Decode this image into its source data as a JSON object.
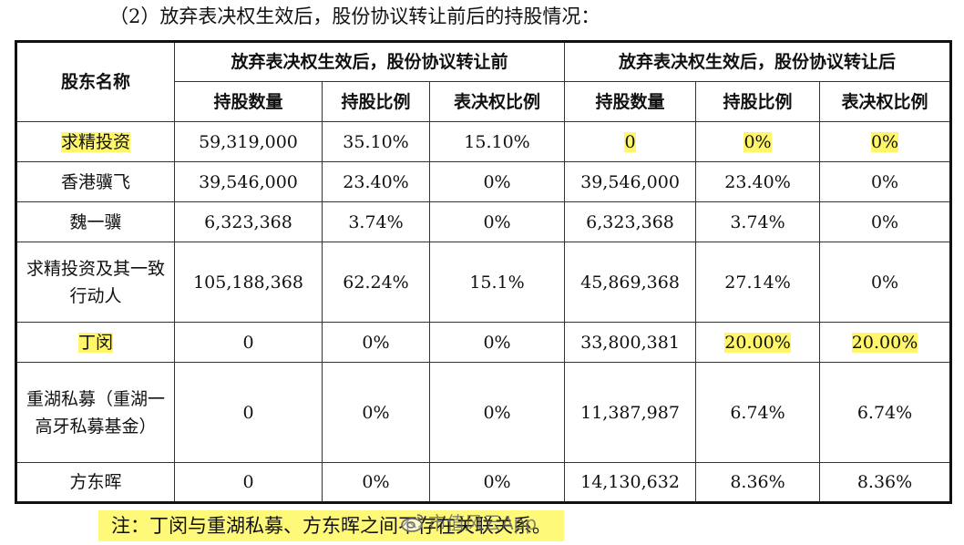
{
  "heading": "（2）放弃表决权生效后，股份协议转让前后的持股情况：",
  "table": {
    "col_name": "股东名称",
    "group_before": "放弃表决权生效后，股份协议转让前",
    "group_after": "放弃表决权生效后，股份协议转让后",
    "sub_headers": [
      "持股数量",
      "持股比例",
      "表决权比例",
      "持股数量",
      "持股比例",
      "表决权比例"
    ],
    "rows": [
      {
        "name": "求精投资",
        "cells": [
          "59,319,000",
          "35.10%",
          "15.10%",
          "0",
          "0%",
          "0%"
        ]
      },
      {
        "name": "香港骥飞",
        "cells": [
          "39,546,000",
          "23.40%",
          "0%",
          "39,546,000",
          "23.40%",
          "0%"
        ]
      },
      {
        "name": "魏一骥",
        "cells": [
          "6,323,368",
          "3.74%",
          "0%",
          "6,323,368",
          "3.74%",
          "0%"
        ]
      },
      {
        "name": "求精投资及其一致行动人",
        "cells": [
          "105,188,368",
          "62.24%",
          "15.1%",
          "45,869,368",
          "27.14%",
          "0%"
        ]
      },
      {
        "name": "丁闵",
        "cells": [
          "0",
          "0%",
          "0%",
          "33,800,381",
          "20.00%",
          "20.00%"
        ]
      },
      {
        "name": "重湖私募（重湖一高牙私募基金）",
        "cells": [
          "0",
          "0%",
          "0%",
          "11,387,987",
          "6.74%",
          "6.74%"
        ]
      },
      {
        "name": "方东晖",
        "cells": [
          "0",
          "0%",
          "0%",
          "14,130,632",
          "8.36%",
          "8.36%"
        ]
      }
    ]
  },
  "note": "注：丁闵与重湖私募、方东晖之间不存在关联关系。",
  "watermark": "市值风云App",
  "colors": {
    "highlight": "#fff97a",
    "border": "#111111"
  }
}
